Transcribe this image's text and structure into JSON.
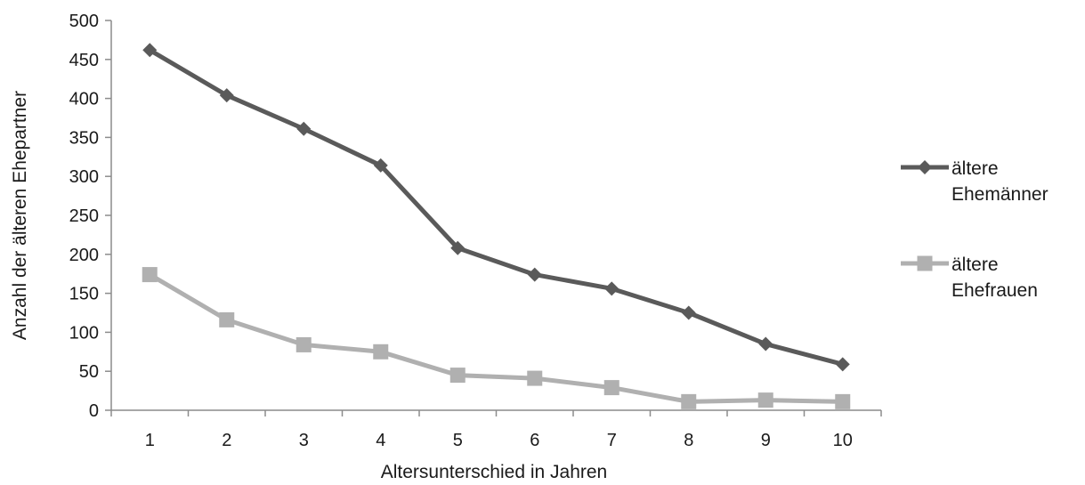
{
  "chart_data": {
    "type": "line",
    "title": "",
    "xlabel": "Altersunterschied in Jahren",
    "ylabel": "Anzahl der älteren Ehepartner",
    "categories": [
      "1",
      "2",
      "3",
      "4",
      "5",
      "6",
      "7",
      "8",
      "9",
      "10"
    ],
    "ylim": [
      0,
      500
    ],
    "yticks": [
      "0",
      "50",
      "100",
      "150",
      "200",
      "250",
      "300",
      "350",
      "400",
      "450",
      "500"
    ],
    "grid": false,
    "legend_position": "right",
    "series": [
      {
        "name": "ältere Ehemänner",
        "legend_lines": [
          "ältere",
          "Ehemänner"
        ],
        "marker": "diamond",
        "color": "#5a5a5a",
        "values": [
          462,
          404,
          361,
          314,
          208,
          174,
          156,
          125,
          85,
          59
        ]
      },
      {
        "name": "ältere Ehefrauen",
        "legend_lines": [
          "ältere",
          "Ehefrauen"
        ],
        "marker": "square",
        "color": "#b0b0b0",
        "values": [
          174,
          116,
          84,
          75,
          45,
          41,
          29,
          11,
          13,
          11
        ]
      }
    ]
  }
}
